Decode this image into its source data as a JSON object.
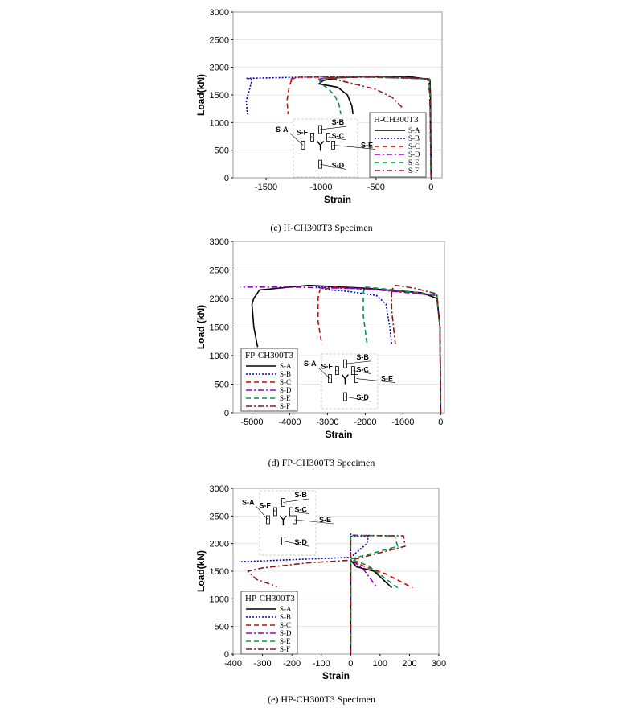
{
  "chart_data": [
    {
      "type": "line",
      "caption": "(c) H-CH300T3 Specimen",
      "title": "",
      "xlabel": "Strain",
      "ylabel": "Load(kN)",
      "xlim": [
        -1800,
        100
      ],
      "ylim": [
        0,
        3000
      ],
      "xticks": [
        -1500,
        -1000,
        -500,
        0
      ],
      "yticks": [
        0,
        500,
        1000,
        1500,
        2000,
        2500,
        3000
      ],
      "legend": {
        "title": "H-CH300T3",
        "placement": "right"
      },
      "inset_labels": [
        "S-A",
        "S-B",
        "S-C",
        "S-D",
        "S-E",
        "S-F"
      ],
      "series": [
        {
          "name": "S-A",
          "color": "#000000",
          "style": "solid",
          "points": [
            [
              0,
              0
            ],
            [
              -5,
              1500
            ],
            [
              -10,
              1780
            ],
            [
              -200,
              1830
            ],
            [
              -500,
              1840
            ],
            [
              -850,
              1810
            ],
            [
              -980,
              1760
            ],
            [
              -1020,
              1700
            ],
            [
              -850,
              1640
            ],
            [
              -760,
              1500
            ],
            [
              -720,
              1300
            ],
            [
              -710,
              1150
            ]
          ]
        },
        {
          "name": "S-B",
          "color": "#0000cc",
          "style": "dot",
          "points": [
            [
              0,
              0
            ],
            [
              -10,
              1500
            ],
            [
              -20,
              1790
            ],
            [
              -500,
              1830
            ],
            [
              -1200,
              1820
            ],
            [
              -1680,
              1800
            ],
            [
              -1640,
              1790
            ],
            [
              -1630,
              1760
            ],
            [
              -1650,
              1600
            ],
            [
              -1680,
              1400
            ],
            [
              -1670,
              1150
            ]
          ]
        },
        {
          "name": "S-C",
          "color": "#dd0000",
          "style": "dash",
          "points": [
            [
              0,
              0
            ],
            [
              -8,
              1500
            ],
            [
              -15,
              1790
            ],
            [
              -500,
              1830
            ],
            [
              -1200,
              1820
            ],
            [
              -1290,
              1780
            ],
            [
              -1270,
              1760
            ],
            [
              -1290,
              1650
            ],
            [
              -1310,
              1400
            ],
            [
              -1300,
              1150
            ]
          ]
        },
        {
          "name": "S-D",
          "color": "#9900cc",
          "style": "dashdot",
          "points": [
            [
              0,
              0
            ],
            [
              -10,
              1500
            ],
            [
              -20,
              1790
            ],
            [
              -700,
              1830
            ],
            [
              -1010,
              1790
            ],
            [
              -1000,
              1750
            ],
            [
              -1010,
              1700
            ]
          ]
        },
        {
          "name": "S-E",
          "color": "#009944",
          "style": "dash",
          "points": [
            [
              0,
              0
            ],
            [
              -10,
              1500
            ],
            [
              -15,
              1790
            ],
            [
              -700,
              1830
            ],
            [
              -1020,
              1790
            ],
            [
              -1000,
              1700
            ],
            [
              -940,
              1620
            ],
            [
              -880,
              1500
            ],
            [
              -840,
              1350
            ],
            [
              -820,
              1150
            ]
          ]
        },
        {
          "name": "S-F",
          "color": "#8b1a1a",
          "style": "dashdot",
          "points": [
            [
              0,
              0
            ],
            [
              -10,
              1500
            ],
            [
              -30,
              1790
            ],
            [
              -250,
              1820
            ],
            [
              -650,
              1820
            ],
            [
              -950,
              1810
            ],
            [
              -870,
              1780
            ],
            [
              -700,
              1700
            ],
            [
              -500,
              1600
            ],
            [
              -350,
              1450
            ],
            [
              -250,
              1250
            ]
          ]
        }
      ]
    },
    {
      "type": "line",
      "caption": "(d) FP-CH300T3 Specimen",
      "title": "",
      "xlabel": "Strain",
      "ylabel": "Load (kN)",
      "xlim": [
        -5500,
        100
      ],
      "ylim": [
        0,
        3000
      ],
      "xticks": [
        -5000,
        -4000,
        -3000,
        -2000,
        -1000,
        0
      ],
      "yticks": [
        0,
        500,
        1000,
        1500,
        2000,
        2500,
        3000
      ],
      "legend": {
        "title": "FP-CH300T3",
        "placement": "bottom-left"
      },
      "inset_labels": [
        "S-A",
        "S-B",
        "S-C",
        "S-D",
        "S-E",
        "S-F"
      ],
      "series": [
        {
          "name": "S-A",
          "color": "#000000",
          "style": "solid",
          "points": [
            [
              0,
              0
            ],
            [
              -20,
              1500
            ],
            [
              -100,
              2000
            ],
            [
              -500,
              2100
            ],
            [
              -2000,
              2180
            ],
            [
              -3500,
              2230
            ],
            [
              -4800,
              2150
            ],
            [
              -4950,
              2000
            ],
            [
              -5000,
              1900
            ],
            [
              -4950,
              1500
            ],
            [
              -4850,
              1150
            ]
          ]
        },
        {
          "name": "S-B",
          "color": "#0000cc",
          "style": "dot",
          "points": [
            [
              0,
              0
            ],
            [
              -20,
              1500
            ],
            [
              -100,
              2050
            ],
            [
              -1000,
              2130
            ],
            [
              -2500,
              2180
            ],
            [
              -3300,
              2200
            ],
            [
              -2900,
              2150
            ],
            [
              -2400,
              2120
            ],
            [
              -1700,
              2050
            ],
            [
              -1450,
              1900
            ],
            [
              -1350,
              1500
            ],
            [
              -1300,
              1200
            ]
          ]
        },
        {
          "name": "S-C",
          "color": "#dd0000",
          "style": "dash",
          "points": [
            [
              0,
              0
            ],
            [
              -20,
              1500
            ],
            [
              -100,
              2050
            ],
            [
              -1500,
              2150
            ],
            [
              -2800,
              2200
            ],
            [
              -3200,
              2150
            ],
            [
              -3250,
              2000
            ],
            [
              -3250,
              1600
            ],
            [
              -3150,
              1200
            ]
          ]
        },
        {
          "name": "S-D",
          "color": "#9900cc",
          "style": "dashdot",
          "points": [
            [
              0,
              0
            ],
            [
              -20,
              1500
            ],
            [
              -100,
              2050
            ],
            [
              -2000,
              2170
            ],
            [
              -4000,
              2200
            ],
            [
              -5000,
              2200
            ],
            [
              -5300,
              2200
            ]
          ]
        },
        {
          "name": "S-E",
          "color": "#009944",
          "style": "dash",
          "points": [
            [
              0,
              0
            ],
            [
              -20,
              1500
            ],
            [
              -100,
              2060
            ],
            [
              -1200,
              2150
            ],
            [
              -2000,
              2200
            ],
            [
              -2050,
              2100
            ],
            [
              -2050,
              1700
            ],
            [
              -1950,
              1200
            ]
          ]
        },
        {
          "name": "S-F",
          "color": "#8b1a1a",
          "style": "dashdot",
          "points": [
            [
              0,
              0
            ],
            [
              -20,
              1500
            ],
            [
              -100,
              2080
            ],
            [
              -700,
              2180
            ],
            [
              -1200,
              2230
            ],
            [
              -1300,
              2150
            ],
            [
              -1300,
              1800
            ],
            [
              -1200,
              1200
            ]
          ]
        }
      ]
    },
    {
      "type": "line",
      "caption": "(e) HP-CH300T3 Specimen",
      "title": "",
      "xlabel": "Strain",
      "ylabel": "Load(kN)",
      "xlim": [
        -400,
        300
      ],
      "ylim": [
        0,
        3000
      ],
      "xticks": [
        -400,
        -300,
        -200,
        -100,
        0,
        100,
        200,
        300
      ],
      "yticks": [
        0,
        500,
        1000,
        1500,
        2000,
        2500,
        3000
      ],
      "legend": {
        "title": "HP-CH300T3",
        "placement": "bottom-left"
      },
      "inset_labels": [
        "S-A",
        "S-B",
        "S-C",
        "S-D",
        "S-E",
        "S-F"
      ],
      "series": [
        {
          "name": "S-A",
          "color": "#000000",
          "style": "solid",
          "points": [
            [
              0,
              0
            ],
            [
              0,
              1500
            ],
            [
              0,
              1700
            ],
            [
              20,
              1580
            ],
            [
              80,
              1500
            ],
            [
              140,
              1200
            ]
          ]
        },
        {
          "name": "S-B",
          "color": "#0000cc",
          "style": "dot",
          "points": [
            [
              0,
              0
            ],
            [
              0,
              1500
            ],
            [
              0,
              2200
            ],
            [
              0,
              2130
            ],
            [
              60,
              2130
            ],
            [
              55,
              2000
            ],
            [
              0,
              1750
            ],
            [
              -150,
              1720
            ],
            [
              -380,
              1670
            ]
          ]
        },
        {
          "name": "S-C",
          "color": "#dd0000",
          "style": "dash",
          "points": [
            [
              0,
              0
            ],
            [
              0,
              1500
            ],
            [
              0,
              1700
            ],
            [
              50,
              1580
            ],
            [
              120,
              1450
            ],
            [
              210,
              1200
            ]
          ]
        },
        {
          "name": "S-D",
          "color": "#9900cc",
          "style": "dashdot",
          "points": [
            [
              0,
              0
            ],
            [
              0,
              1500
            ],
            [
              0,
              1700
            ],
            [
              40,
              1560
            ],
            [
              90,
              1200
            ]
          ]
        },
        {
          "name": "S-E",
          "color": "#009944",
          "style": "dash",
          "points": [
            [
              0,
              0
            ],
            [
              0,
              1500
            ],
            [
              0,
              2150
            ],
            [
              150,
              2140
            ],
            [
              160,
              1950
            ],
            [
              0,
              1720
            ],
            [
              60,
              1600
            ],
            [
              160,
              1200
            ]
          ]
        },
        {
          "name": "S-F",
          "color": "#8b1a1a",
          "style": "dashdot",
          "points": [
            [
              0,
              0
            ],
            [
              0,
              1500
            ],
            [
              0,
              2150
            ],
            [
              180,
              2140
            ],
            [
              185,
              1950
            ],
            [
              0,
              1700
            ],
            [
              -150,
              1650
            ],
            [
              -300,
              1560
            ],
            [
              -350,
              1500
            ],
            [
              -320,
              1350
            ],
            [
              -250,
              1220
            ]
          ]
        }
      ]
    }
  ]
}
